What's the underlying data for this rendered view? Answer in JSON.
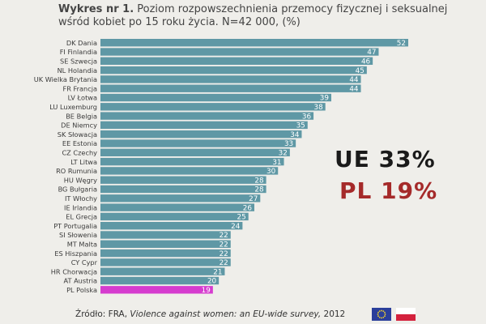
{
  "title": {
    "prefix": "Wykres nr 1.",
    "text": "Poziom rozpowszechnienia przemocy fizycznej i seksualnej wśród kobiet po 15 roku życia. N=42 000, (%)"
  },
  "summary": {
    "ue": "UE 33%",
    "pl": "PL  19%"
  },
  "source": {
    "prefix": "Źródło: FRA, ",
    "italic": "Violence against women: an EU-wide survey,",
    "suffix": " 2012"
  },
  "flags": {
    "eu": "eu-flag-icon",
    "pl": "poland-flag-icon"
  },
  "colors": {
    "bar": "#5f98a5",
    "highlight": "#d63ccf",
    "background": "#efeeea"
  },
  "chart_data": {
    "type": "bar",
    "orientation": "horizontal",
    "categories": [
      "DK Dania",
      "FI Finlandia",
      "SE Szwecja",
      "NL Holandia",
      "UK Wielka Brytania",
      "FR Francja",
      "LV Łotwa",
      "LU Luxemburg",
      "BE Belgia",
      "DE Niemcy",
      "SK Słowacja",
      "EE Estonia",
      "CZ Czechy",
      "LT Litwa",
      "RO Rumunia",
      "HU Węgry",
      "BG Bułgaria",
      "IT Włochy",
      "IE Irlandia",
      "EL Grecja",
      "PT Portugalia",
      "SI Słowenia",
      "MT Malta",
      "ES Hiszpania",
      "CY Cypr",
      "HR Chorwacja",
      "AT Austria",
      "PL Polska"
    ],
    "values": [
      52,
      47,
      46,
      45,
      44,
      44,
      39,
      38,
      36,
      35,
      34,
      33,
      32,
      31,
      30,
      28,
      28,
      27,
      26,
      25,
      24,
      22,
      22,
      22,
      22,
      21,
      20,
      19
    ],
    "highlight_category": "PL Polska",
    "xlim": [
      0,
      52
    ]
  }
}
